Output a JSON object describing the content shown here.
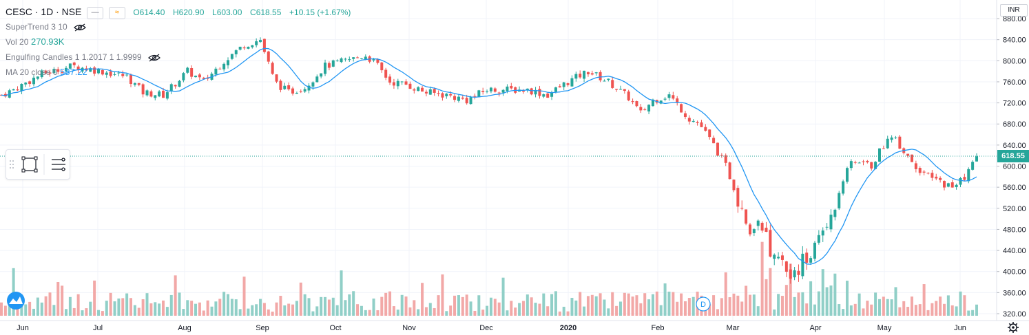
{
  "symbol": {
    "name": "CESC",
    "interval": "1D",
    "exchange": "NSE",
    "title": "CESC · 1D · NSE"
  },
  "ohlc": {
    "open": "O614.40",
    "high": "H620.90",
    "low": "L603.00",
    "close": "C618.55",
    "change": "+10.15 (+1.67%)"
  },
  "indicators": [
    {
      "name": "SuperTrend 3 10",
      "value": ""
    },
    {
      "name": "Vol 20",
      "value": "270.93K"
    },
    {
      "name": "Engulfing Candles 1 1.2017 1 1.9999",
      "value": ""
    },
    {
      "name": "MA 20 close 0",
      "value": "587.22"
    }
  ],
  "currency": "INR",
  "current_price_label": "618.55",
  "colors": {
    "up": "#26a69a",
    "down": "#ef5350",
    "up_vol": "#90cfc7",
    "down_vol": "#f2a8a7",
    "ma": "#2196f3",
    "grid": "#f0f3fa",
    "axis_text": "#131722"
  },
  "icons": [
    "eye-off-icon",
    "rectangle-tool-icon",
    "lines-tool-icon",
    "logo-icon",
    "settings-gear-icon",
    "dividend-icon"
  ],
  "dividend_marker": "D",
  "chart_data": {
    "type": "candlestick",
    "y_axis": {
      "ticks": [
        320,
        360,
        400,
        440,
        480,
        520,
        560,
        600,
        640,
        680,
        720,
        760,
        800,
        840,
        880
      ],
      "currency": "INR"
    },
    "x_axis": {
      "ticks": [
        "Jun",
        "Jul",
        "Aug",
        "Sep",
        "Oct",
        "Nov",
        "Dec",
        "2020",
        "Feb",
        "Mar",
        "Apr",
        "May",
        "Jun"
      ]
    },
    "ma_period": 20,
    "ma_last": 587.22,
    "last_close": 618.55,
    "series_price_points": [
      {
        "month": "Jun",
        "close": 740
      },
      {
        "month": "Jul",
        "close": 775
      },
      {
        "month": "Aug",
        "close": 745
      },
      {
        "month": "Sep",
        "close": 790
      },
      {
        "month": "Oct",
        "close": 745
      },
      {
        "month": "Nov",
        "close": 800
      },
      {
        "month": "Dec",
        "close": 720
      },
      {
        "month": "2020",
        "close": 745
      },
      {
        "month": "Feb",
        "close": 710
      },
      {
        "month": "Mar",
        "close": 650
      },
      {
        "month": "Apr",
        "close": 405
      },
      {
        "month": "May",
        "close": 635
      },
      {
        "month": "Jun",
        "close": 618.55
      }
    ]
  }
}
